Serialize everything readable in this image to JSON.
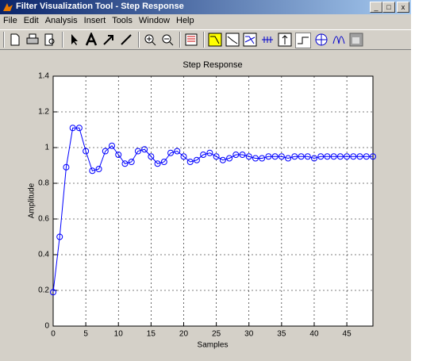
{
  "window": {
    "title": "Filter Visualization Tool - Step Response"
  },
  "menu": [
    "File",
    "Edit",
    "Analysis",
    "Insert",
    "Tools",
    "Window",
    "Help"
  ],
  "chart_data": {
    "type": "line",
    "title": "Step Response",
    "x_label": "Samples",
    "y_label": "Amplitude",
    "x": [
      0,
      1,
      2,
      3,
      4,
      5,
      6,
      7,
      8,
      9,
      10,
      11,
      12,
      13,
      14,
      15,
      16,
      17,
      18,
      19,
      20,
      21,
      22,
      23,
      24,
      25,
      26,
      27,
      28,
      29,
      30,
      31,
      32,
      33,
      34,
      35,
      36,
      37,
      38,
      39,
      40,
      41,
      42,
      43,
      44,
      45,
      46,
      47,
      48,
      49
    ],
    "values": [
      0.19,
      0.5,
      0.89,
      1.11,
      1.11,
      0.98,
      0.87,
      0.88,
      0.98,
      1.01,
      0.96,
      0.91,
      0.92,
      0.98,
      0.99,
      0.95,
      0.91,
      0.92,
      0.97,
      0.98,
      0.95,
      0.92,
      0.93,
      0.96,
      0.97,
      0.95,
      0.93,
      0.94,
      0.96,
      0.96,
      0.95,
      0.94,
      0.94,
      0.95,
      0.95,
      0.95,
      0.94,
      0.95,
      0.95,
      0.95,
      0.94,
      0.95,
      0.95,
      0.95,
      0.95,
      0.95,
      0.95,
      0.95,
      0.95,
      0.95
    ],
    "color": "#0000ff",
    "xlim": [
      0,
      49
    ],
    "xticks": [
      0,
      5,
      10,
      15,
      20,
      25,
      30,
      35,
      40,
      45
    ],
    "ylim": [
      0,
      1.4
    ],
    "yticks": [
      0,
      0.2,
      0.4,
      0.6,
      0.8,
      1,
      1.2,
      1.4
    ],
    "grid": true,
    "marker": "circle"
  }
}
